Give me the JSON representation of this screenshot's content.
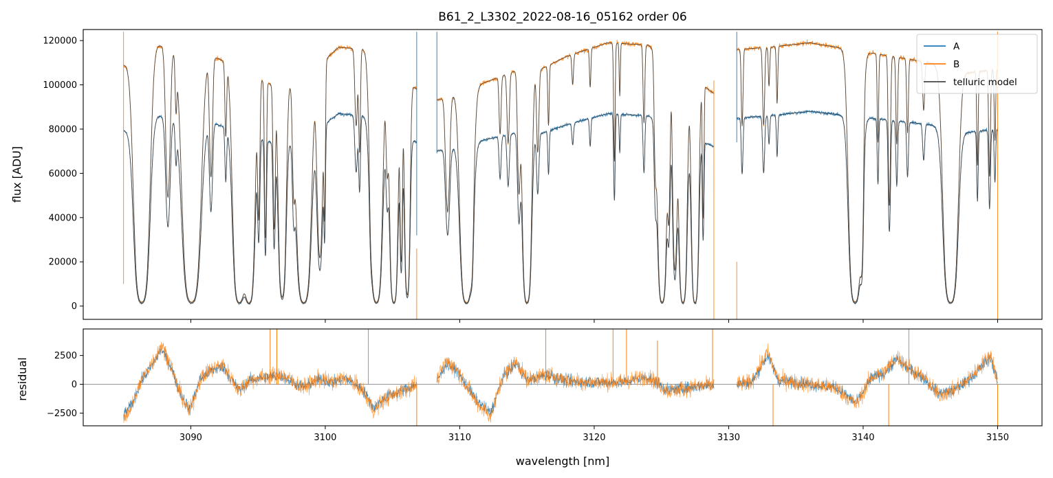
{
  "chart_data": {
    "type": "line",
    "title": "B61_2_L3302_2022-08-16_05162  order 06",
    "xlabel": "wavelength [nm]",
    "xlim": [
      3082,
      3153.3
    ],
    "x_ticks": [
      3090,
      3100,
      3110,
      3120,
      3130,
      3140,
      3150
    ],
    "x_tick_labels": [
      "3090",
      "3100",
      "3110",
      "3120",
      "3130",
      "3140",
      "3150"
    ],
    "segments": [
      [
        3085.0,
        3106.8
      ],
      [
        3108.3,
        3128.9
      ],
      [
        3130.6,
        3150.0
      ]
    ],
    "panels": [
      {
        "id": "flux",
        "ylabel": "flux [ADU]",
        "ylim": [
          -6000,
          125000
        ],
        "y_ticks": [
          0,
          20000,
          40000,
          60000,
          80000,
          100000,
          120000
        ],
        "y_tick_labels": [
          "0",
          "20000",
          "40000",
          "60000",
          "80000",
          "100000",
          "120000"
        ],
        "legend": {
          "placement": "upper right",
          "entries": [
            "A",
            "B",
            "telluric model"
          ]
        },
        "continuum": {
          "A": [
            [
              3085.0,
              80000
            ],
            [
              3087.5,
              86000
            ],
            [
              3090.0,
              84000
            ],
            [
              3092.0,
              82000
            ],
            [
              3094.0,
              78000
            ],
            [
              3096.0,
              74000
            ],
            [
              3099.0,
              78000
            ],
            [
              3101.0,
              87000
            ],
            [
              3103.0,
              86000
            ],
            [
              3105.0,
              80000
            ],
            [
              3106.8,
              74000
            ],
            [
              3108.3,
              70000
            ],
            [
              3111.0,
              74000
            ],
            [
              3114.0,
              78000
            ],
            [
              3116.0,
              78000
            ],
            [
              3118.0,
              82000
            ],
            [
              3121.0,
              87000
            ],
            [
              3124.0,
              86000
            ],
            [
              3126.0,
              80000
            ],
            [
              3128.9,
              72000
            ],
            [
              3130.6,
              85000
            ],
            [
              3133.0,
              86000
            ],
            [
              3136.0,
              88000
            ],
            [
              3139.0,
              86000
            ],
            [
              3142.0,
              84000
            ],
            [
              3145.0,
              82000
            ],
            [
              3147.0,
              78000
            ],
            [
              3150.0,
              80000
            ]
          ],
          "B": [
            [
              3085.0,
              110000
            ],
            [
              3087.5,
              118000
            ],
            [
              3090.0,
              115000
            ],
            [
              3092.0,
              112000
            ],
            [
              3094.0,
              106000
            ],
            [
              3096.0,
              100000
            ],
            [
              3099.0,
              106000
            ],
            [
              3101.0,
              117000
            ],
            [
              3103.0,
              116000
            ],
            [
              3105.0,
              108000
            ],
            [
              3106.8,
              98000
            ],
            [
              3108.3,
              93000
            ],
            [
              3111.0,
              99000
            ],
            [
              3114.0,
              106000
            ],
            [
              3116.0,
              107000
            ],
            [
              3118.0,
              113000
            ],
            [
              3121.0,
              119000
            ],
            [
              3124.0,
              118000
            ],
            [
              3126.0,
              110000
            ],
            [
              3128.9,
              96000
            ],
            [
              3130.6,
              116000
            ],
            [
              3133.0,
              117000
            ],
            [
              3136.0,
              119000
            ],
            [
              3139.0,
              116000
            ],
            [
              3142.0,
              113000
            ],
            [
              3145.0,
              110000
            ],
            [
              3147.0,
              105000
            ],
            [
              3150.0,
              107000
            ]
          ]
        },
        "absorption_lines": [
          [
            3085.6,
            0.45,
            0.02
          ],
          [
            3086.35,
            0.34,
            1.0
          ],
          [
            3088.3,
            0.14,
            0.58
          ],
          [
            3088.9,
            0.06,
            0.2
          ],
          [
            3090.05,
            0.4,
            1.0
          ],
          [
            3091.5,
            0.1,
            0.48
          ],
          [
            3092.6,
            0.06,
            0.3
          ],
          [
            3093.6,
            0.28,
            0.99
          ],
          [
            3094.35,
            0.24,
            1.0
          ],
          [
            3095.05,
            0.07,
            0.6
          ],
          [
            3095.55,
            0.06,
            0.7
          ],
          [
            3096.2,
            0.07,
            0.65
          ],
          [
            3096.8,
            0.18,
            0.96
          ],
          [
            3097.65,
            0.08,
            0.4
          ],
          [
            3098.4,
            0.32,
            1.0
          ],
          [
            3099.6,
            0.16,
            0.8
          ],
          [
            3099.95,
            0.05,
            0.6
          ],
          [
            3102.3,
            0.09,
            0.3
          ],
          [
            3102.55,
            0.06,
            0.4
          ],
          [
            3103.4,
            0.08,
            0.3
          ],
          [
            3103.8,
            0.26,
            1.0
          ],
          [
            3104.6,
            0.08,
            0.4
          ],
          [
            3105.1,
            0.18,
            0.99
          ],
          [
            3105.65,
            0.07,
            0.8
          ],
          [
            3106.1,
            0.13,
            0.95
          ],
          [
            3109.1,
            0.13,
            0.55
          ],
          [
            3110.5,
            0.28,
            0.99
          ],
          [
            3110.9,
            0.08,
            0.5
          ],
          [
            3113.0,
            0.07,
            0.25
          ],
          [
            3113.6,
            0.08,
            0.3
          ],
          [
            3114.4,
            0.09,
            0.5
          ],
          [
            3115.0,
            0.2,
            0.99
          ],
          [
            3115.8,
            0.08,
            0.35
          ],
          [
            3116.6,
            0.05,
            0.25
          ],
          [
            3118.4,
            0.06,
            0.12
          ],
          [
            3119.7,
            0.05,
            0.15
          ],
          [
            3121.5,
            0.05,
            0.45
          ],
          [
            3121.9,
            0.04,
            0.2
          ],
          [
            3123.7,
            0.06,
            0.3
          ],
          [
            3124.55,
            0.08,
            0.42
          ],
          [
            3125.05,
            0.2,
            0.99
          ],
          [
            3125.55,
            0.08,
            0.6
          ],
          [
            3126.0,
            0.12,
            0.85
          ],
          [
            3126.6,
            0.18,
            0.99
          ],
          [
            3127.5,
            0.16,
            0.99
          ],
          [
            3128.1,
            0.05,
            0.6
          ],
          [
            3131.0,
            0.06,
            0.3
          ],
          [
            3132.6,
            0.07,
            0.3
          ],
          [
            3133.0,
            0.05,
            0.15
          ],
          [
            3133.6,
            0.05,
            0.22
          ],
          [
            3139.4,
            0.28,
            0.99
          ],
          [
            3139.9,
            0.09,
            0.7
          ],
          [
            3141.1,
            0.05,
            0.35
          ],
          [
            3141.95,
            0.07,
            0.6
          ],
          [
            3142.5,
            0.06,
            0.35
          ],
          [
            3143.3,
            0.06,
            0.3
          ],
          [
            3144.5,
            0.07,
            0.2
          ],
          [
            3146.5,
            0.32,
            0.99
          ],
          [
            3148.5,
            0.05,
            0.4
          ],
          [
            3149.4,
            0.06,
            0.45
          ],
          [
            3149.8,
            0.05,
            0.3
          ]
        ]
      },
      {
        "id": "residual",
        "ylabel": "residual",
        "ylim": [
          -3600,
          4800
        ],
        "y_ticks": [
          -2500,
          0,
          2500
        ],
        "y_tick_labels": [
          "−2500",
          "0",
          "2500"
        ],
        "zero_line": true
      }
    ],
    "series": [
      {
        "name": "A",
        "color": "#1f77b4"
      },
      {
        "name": "B",
        "color": "#ff7f0e"
      },
      {
        "name": "telluric model",
        "color": "#444444"
      }
    ],
    "residual_features": [
      [
        3085.0,
        -3000
      ],
      [
        3085.6,
        -2000
      ],
      [
        3086.3,
        300
      ],
      [
        3087.2,
        2000
      ],
      [
        3087.8,
        3400
      ],
      [
        3088.5,
        1800
      ],
      [
        3089.0,
        -200
      ],
      [
        3089.9,
        -2500
      ],
      [
        3090.7,
        500
      ],
      [
        3091.5,
        1300
      ],
      [
        3092.4,
        1700
      ],
      [
        3093.6,
        -600
      ],
      [
        3094.4,
        400
      ],
      [
        3095.6,
        700
      ],
      [
        3096.8,
        800
      ],
      [
        3097.6,
        200
      ],
      [
        3098.4,
        -300
      ],
      [
        3099.5,
        500
      ],
      [
        3100.6,
        200
      ],
      [
        3101.5,
        600
      ],
      [
        3102.8,
        -500
      ],
      [
        3103.6,
        -2300
      ],
      [
        3104.4,
        -1300
      ],
      [
        3106.8,
        0
      ],
      [
        3108.3,
        300
      ],
      [
        3109.0,
        2000
      ],
      [
        3109.8,
        1300
      ],
      [
        3111.2,
        -1500
      ],
      [
        3112.3,
        -2800
      ],
      [
        3113.2,
        700
      ],
      [
        3114.2,
        2000
      ],
      [
        3115.0,
        400
      ],
      [
        3116.5,
        900
      ],
      [
        3118.0,
        300
      ],
      [
        3120.0,
        200
      ],
      [
        3122.0,
        200
      ],
      [
        3124.0,
        700
      ],
      [
        3125.5,
        -600
      ],
      [
        3127.0,
        -300
      ],
      [
        3128.9,
        0
      ],
      [
        3130.6,
        0
      ],
      [
        3131.7,
        200
      ],
      [
        3132.9,
        2800
      ],
      [
        3133.7,
        400
      ],
      [
        3136.0,
        0
      ],
      [
        3138.0,
        -300
      ],
      [
        3139.5,
        -1800
      ],
      [
        3140.6,
        600
      ],
      [
        3141.6,
        1100
      ],
      [
        3142.5,
        2400
      ],
      [
        3143.6,
        1300
      ],
      [
        3144.6,
        500
      ],
      [
        3145.6,
        -900
      ],
      [
        3146.7,
        -600
      ],
      [
        3148.0,
        600
      ],
      [
        3149.5,
        2600
      ],
      [
        3150.0,
        200
      ]
    ],
    "spikes": {
      "flux": [
        [
          "B",
          3085.0,
          124000,
          10000
        ],
        [
          "A",
          3106.8,
          124000,
          32000
        ],
        [
          "B",
          3106.8,
          26000,
          -6000
        ],
        [
          "A",
          3108.3,
          124000,
          69000
        ],
        [
          "B",
          3128.9,
          102000,
          -6000
        ],
        [
          "A",
          3130.6,
          124000,
          74000
        ],
        [
          "B",
          3130.6,
          20000,
          -6000
        ],
        [
          "B",
          3150.0,
          124000,
          -6000
        ]
      ],
      "residual": [
        [
          "B",
          3095.9,
          4800
        ],
        [
          "B",
          3096.4,
          4800
        ],
        [
          "B",
          3103.2,
          4800
        ],
        [
          "B",
          3116.4,
          4800
        ],
        [
          "B",
          3121.4,
          4800
        ],
        [
          "B",
          3122.4,
          4800
        ],
        [
          "B",
          3128.8,
          4800
        ],
        [
          "B",
          3133.3,
          -3600
        ],
        [
          "B",
          3141.9,
          -3600
        ],
        [
          "B",
          3143.4,
          4800
        ],
        [
          "B",
          3150.0,
          -3600
        ],
        [
          "B",
          3106.8,
          -3600
        ],
        [
          "B",
          3124.7,
          3800
        ]
      ]
    }
  }
}
